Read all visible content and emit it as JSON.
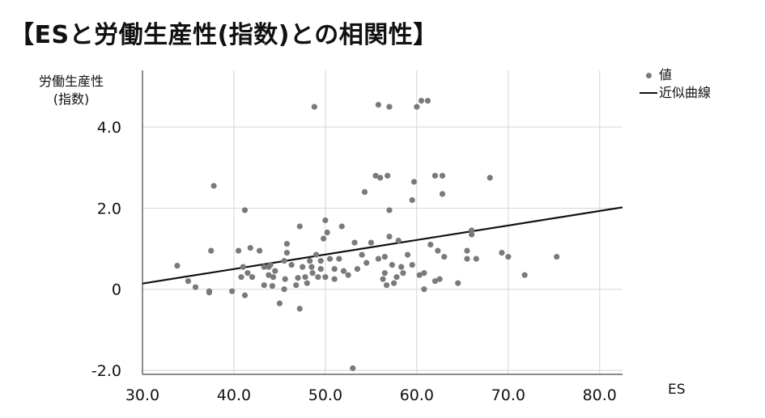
{
  "title": "【ESと労働生産性(指数)との相関性】",
  "chart_data": {
    "type": "scatter",
    "xlabel": "ES",
    "ylabel_lines": [
      "労働生産性",
      "(指数)"
    ],
    "xlim": [
      30,
      82.5
    ],
    "ylim": [
      -2.1,
      5.4
    ],
    "x_ticks": [
      30,
      40,
      50,
      60,
      70,
      80
    ],
    "x_tick_labels": [
      "30.0",
      "40.0",
      "50.0",
      "60.0",
      "70.0",
      "80.0"
    ],
    "y_ticks": [
      -2,
      0,
      2,
      4
    ],
    "y_tick_labels": [
      "-2.0",
      "0",
      "2.0",
      "4.0"
    ],
    "grid": true,
    "legend_position": "top-right",
    "colors": {
      "points": "#7a7a7a",
      "trend": "#111111",
      "grid": "#d6d6d6"
    },
    "series": [
      {
        "name": "値",
        "kind": "scatter",
        "points": [
          [
            33.8,
            0.58
          ],
          [
            35.0,
            0.2
          ],
          [
            35.8,
            0.05
          ],
          [
            37.3,
            -0.05
          ],
          [
            37.5,
            0.95
          ],
          [
            37.8,
            2.55
          ],
          [
            37.3,
            -0.08
          ],
          [
            39.8,
            -0.05
          ],
          [
            40.5,
            0.95
          ],
          [
            40.8,
            0.3
          ],
          [
            41.0,
            0.55
          ],
          [
            41.2,
            -0.15
          ],
          [
            41.2,
            1.95
          ],
          [
            41.5,
            0.4
          ],
          [
            41.8,
            1.02
          ],
          [
            42.0,
            0.3
          ],
          [
            42.8,
            0.95
          ],
          [
            43.3,
            0.55
          ],
          [
            43.3,
            0.1
          ],
          [
            43.8,
            0.55
          ],
          [
            43.8,
            0.35
          ],
          [
            44.0,
            0.6
          ],
          [
            44.2,
            0.08
          ],
          [
            44.3,
            0.3
          ],
          [
            44.5,
            0.45
          ],
          [
            45.0,
            -0.35
          ],
          [
            45.5,
            0.7
          ],
          [
            45.6,
            0.25
          ],
          [
            45.8,
            0.9
          ],
          [
            45.8,
            1.12
          ],
          [
            45.5,
            0.0
          ],
          [
            46.3,
            0.6
          ],
          [
            46.8,
            0.1
          ],
          [
            47.0,
            0.28
          ],
          [
            47.2,
            -0.48
          ],
          [
            47.2,
            1.55
          ],
          [
            47.5,
            0.55
          ],
          [
            47.8,
            0.3
          ],
          [
            48.0,
            0.15
          ],
          [
            48.3,
            0.7
          ],
          [
            48.5,
            0.55
          ],
          [
            48.6,
            0.4
          ],
          [
            48.8,
            4.5
          ],
          [
            49.0,
            0.85
          ],
          [
            49.2,
            0.3
          ],
          [
            49.5,
            0.7
          ],
          [
            49.5,
            0.5
          ],
          [
            49.8,
            1.25
          ],
          [
            50.0,
            1.7
          ],
          [
            50.0,
            0.3
          ],
          [
            50.2,
            1.4
          ],
          [
            50.5,
            0.75
          ],
          [
            51.0,
            0.25
          ],
          [
            51.0,
            0.5
          ],
          [
            51.5,
            0.75
          ],
          [
            51.8,
            1.55
          ],
          [
            52.0,
            0.45
          ],
          [
            52.5,
            0.35
          ],
          [
            53.0,
            -1.95
          ],
          [
            53.2,
            1.15
          ],
          [
            53.5,
            0.5
          ],
          [
            54.0,
            0.85
          ],
          [
            54.3,
            2.4
          ],
          [
            54.5,
            0.65
          ],
          [
            55.0,
            1.15
          ],
          [
            55.5,
            2.8
          ],
          [
            55.8,
            4.55
          ],
          [
            55.8,
            0.75
          ],
          [
            56.0,
            2.75
          ],
          [
            56.3,
            0.25
          ],
          [
            56.5,
            0.8
          ],
          [
            56.5,
            0.4
          ],
          [
            56.7,
            0.1
          ],
          [
            56.8,
            2.8
          ],
          [
            57.0,
            4.5
          ],
          [
            57.0,
            1.95
          ],
          [
            57.0,
            1.3
          ],
          [
            57.3,
            0.6
          ],
          [
            57.5,
            0.15
          ],
          [
            57.8,
            0.3
          ],
          [
            58.0,
            1.2
          ],
          [
            58.3,
            0.55
          ],
          [
            58.5,
            0.4
          ],
          [
            59.0,
            0.85
          ],
          [
            59.5,
            0.6
          ],
          [
            59.5,
            2.2
          ],
          [
            59.7,
            2.65
          ],
          [
            60.0,
            4.5
          ],
          [
            60.3,
            0.35
          ],
          [
            60.5,
            4.65
          ],
          [
            60.8,
            0.4
          ],
          [
            60.8,
            0.0
          ],
          [
            61.2,
            4.65
          ],
          [
            61.5,
            1.1
          ],
          [
            62.0,
            2.8
          ],
          [
            62.3,
            0.95
          ],
          [
            62.5,
            0.25
          ],
          [
            62.8,
            2.8
          ],
          [
            62.8,
            2.35
          ],
          [
            63.0,
            0.8
          ],
          [
            64.5,
            0.15
          ],
          [
            65.5,
            0.95
          ],
          [
            65.5,
            0.75
          ],
          [
            66.0,
            1.45
          ],
          [
            66.0,
            1.35
          ],
          [
            66.5,
            0.75
          ],
          [
            68.0,
            2.75
          ],
          [
            69.3,
            0.9
          ],
          [
            70.0,
            0.8
          ],
          [
            71.8,
            0.35
          ],
          [
            75.3,
            0.8
          ],
          [
            62.0,
            0.2
          ]
        ]
      },
      {
        "name": "近似曲線",
        "kind": "line",
        "x": [
          30,
          82.5
        ],
        "y": [
          0.14,
          2.02
        ]
      }
    ]
  }
}
